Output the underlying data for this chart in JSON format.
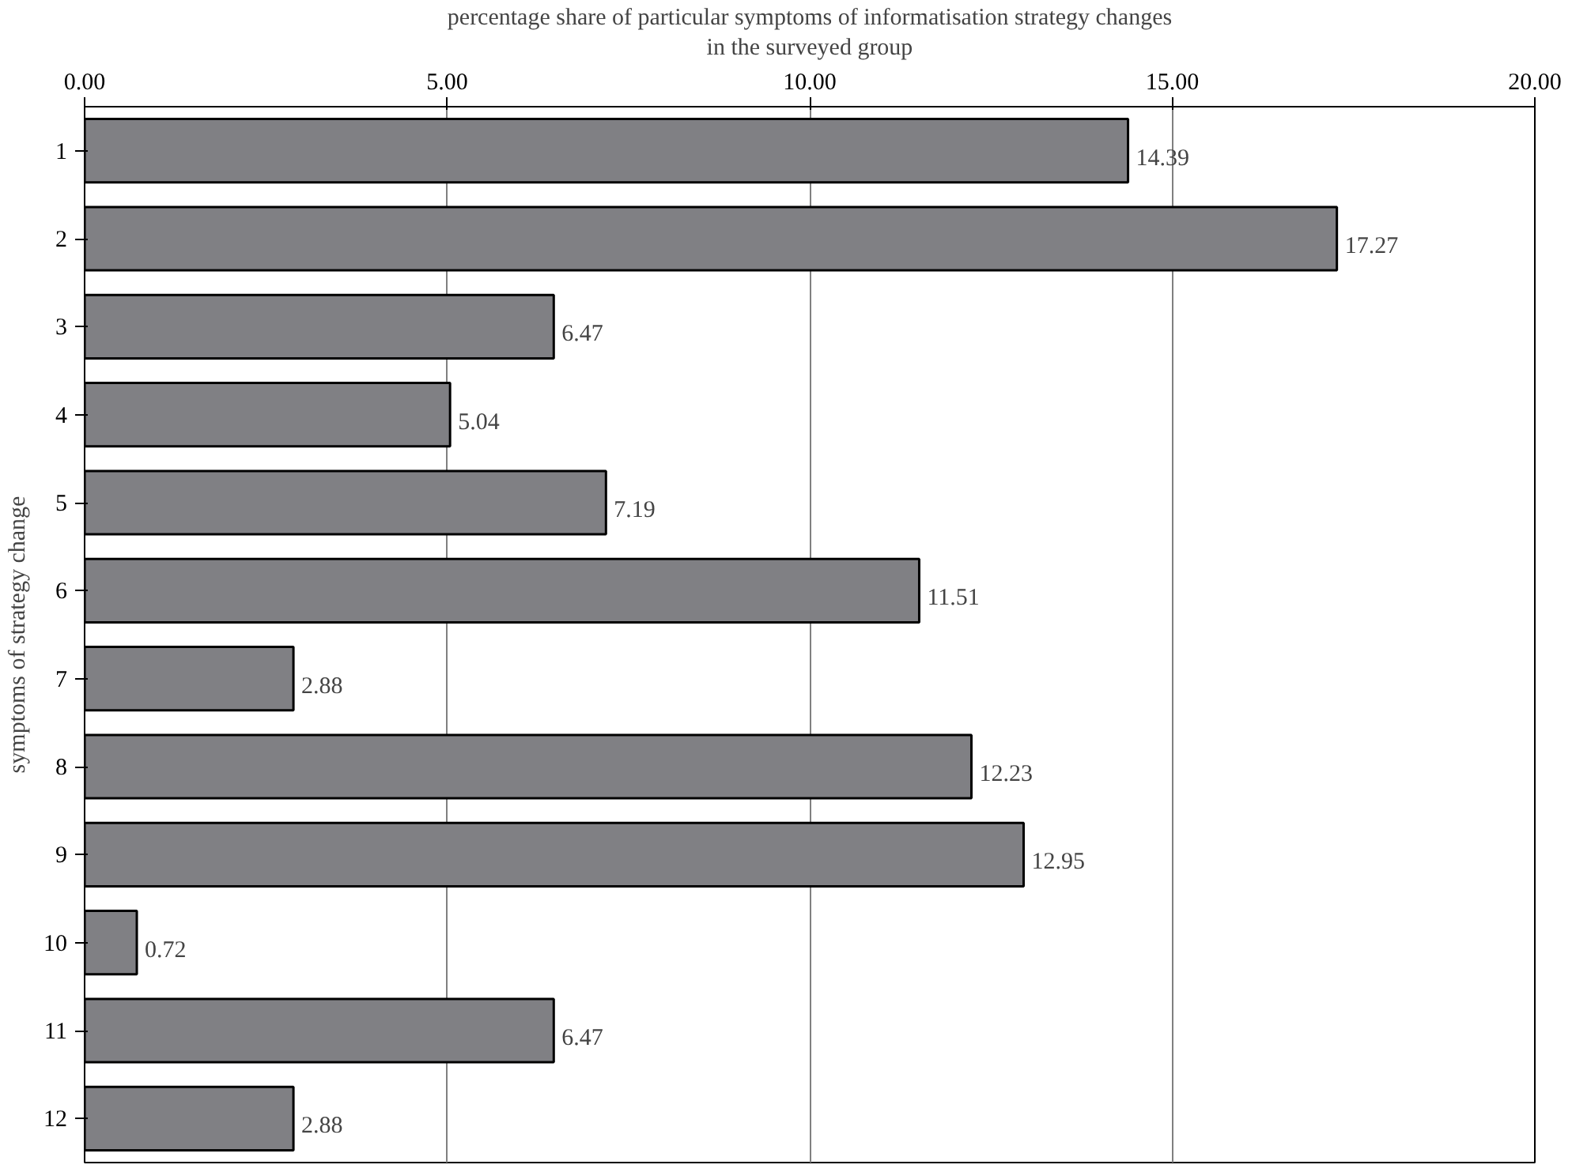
{
  "chart_data": {
    "type": "bar",
    "orientation": "horizontal",
    "xlabel": "percentage share of particular symptoms of informatisation strategy changes\nin the surveyed group",
    "ylabel": "symptoms of strategy change",
    "categories": [
      "1",
      "2",
      "3",
      "4",
      "5",
      "6",
      "7",
      "8",
      "9",
      "10",
      "11",
      "12"
    ],
    "values": [
      14.39,
      17.27,
      6.47,
      5.04,
      7.19,
      11.51,
      2.88,
      12.23,
      12.95,
      0.72,
      6.47,
      2.88
    ],
    "color": "#808084",
    "xlim": [
      0,
      20
    ],
    "xticks": [
      {
        "value": 0,
        "label": "0.00"
      },
      {
        "value": 5,
        "label": "5.00"
      },
      {
        "value": 10,
        "label": "10.00"
      },
      {
        "value": 15,
        "label": "15.00"
      },
      {
        "value": 20,
        "label": "20.00"
      }
    ],
    "grid": "x",
    "data_labels": true
  }
}
